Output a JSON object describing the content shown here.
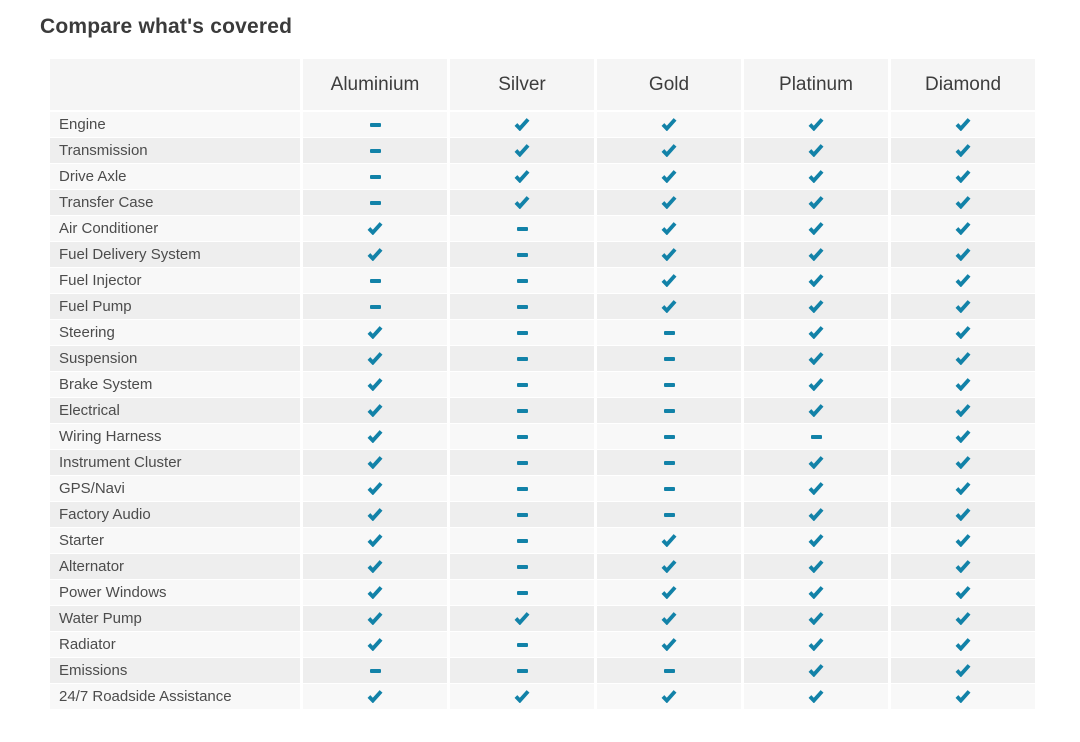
{
  "title": "Compare what's covered",
  "colors": {
    "accent": "#1282a8",
    "header_bg": "#f5f5f5",
    "row_light": "#f8f8f8",
    "row_dark": "#eeeeee"
  },
  "table": {
    "plans": [
      "Aluminium",
      "Silver",
      "Gold",
      "Platinum",
      "Diamond"
    ],
    "value_legend": {
      "check": "covered",
      "dash": "not covered"
    },
    "rows": [
      {
        "label": "Engine",
        "values": [
          "dash",
          "check",
          "check",
          "check",
          "check"
        ]
      },
      {
        "label": "Transmission",
        "values": [
          "dash",
          "check",
          "check",
          "check",
          "check"
        ]
      },
      {
        "label": "Drive Axle",
        "values": [
          "dash",
          "check",
          "check",
          "check",
          "check"
        ]
      },
      {
        "label": "Transfer Case",
        "values": [
          "dash",
          "check",
          "check",
          "check",
          "check"
        ]
      },
      {
        "label": "Air Conditioner",
        "values": [
          "check",
          "dash",
          "check",
          "check",
          "check"
        ]
      },
      {
        "label": "Fuel Delivery System",
        "values": [
          "check",
          "dash",
          "check",
          "check",
          "check"
        ]
      },
      {
        "label": "Fuel Injector",
        "values": [
          "dash",
          "dash",
          "check",
          "check",
          "check"
        ]
      },
      {
        "label": "Fuel Pump",
        "values": [
          "dash",
          "dash",
          "check",
          "check",
          "check"
        ]
      },
      {
        "label": "Steering",
        "values": [
          "check",
          "dash",
          "dash",
          "check",
          "check"
        ]
      },
      {
        "label": "Suspension",
        "values": [
          "check",
          "dash",
          "dash",
          "check",
          "check"
        ]
      },
      {
        "label": "Brake System",
        "values": [
          "check",
          "dash",
          "dash",
          "check",
          "check"
        ]
      },
      {
        "label": "Electrical",
        "values": [
          "check",
          "dash",
          "dash",
          "check",
          "check"
        ]
      },
      {
        "label": "Wiring Harness",
        "values": [
          "check",
          "dash",
          "dash",
          "dash",
          "check"
        ]
      },
      {
        "label": "Instrument Cluster",
        "values": [
          "check",
          "dash",
          "dash",
          "check",
          "check"
        ]
      },
      {
        "label": "GPS/Navi",
        "values": [
          "check",
          "dash",
          "dash",
          "check",
          "check"
        ]
      },
      {
        "label": "Factory Audio",
        "values": [
          "check",
          "dash",
          "dash",
          "check",
          "check"
        ]
      },
      {
        "label": "Starter",
        "values": [
          "check",
          "dash",
          "check",
          "check",
          "check"
        ]
      },
      {
        "label": "Alternator",
        "values": [
          "check",
          "dash",
          "check",
          "check",
          "check"
        ]
      },
      {
        "label": "Power Windows",
        "values": [
          "check",
          "dash",
          "check",
          "check",
          "check"
        ]
      },
      {
        "label": "Water Pump",
        "values": [
          "check",
          "check",
          "check",
          "check",
          "check"
        ]
      },
      {
        "label": "Radiator",
        "values": [
          "check",
          "dash",
          "check",
          "check",
          "check"
        ]
      },
      {
        "label": "Emissions",
        "values": [
          "dash",
          "dash",
          "dash",
          "check",
          "check"
        ]
      },
      {
        "label": "24/7 Roadside Assistance",
        "values": [
          "check",
          "check",
          "check",
          "check",
          "check"
        ]
      }
    ]
  }
}
